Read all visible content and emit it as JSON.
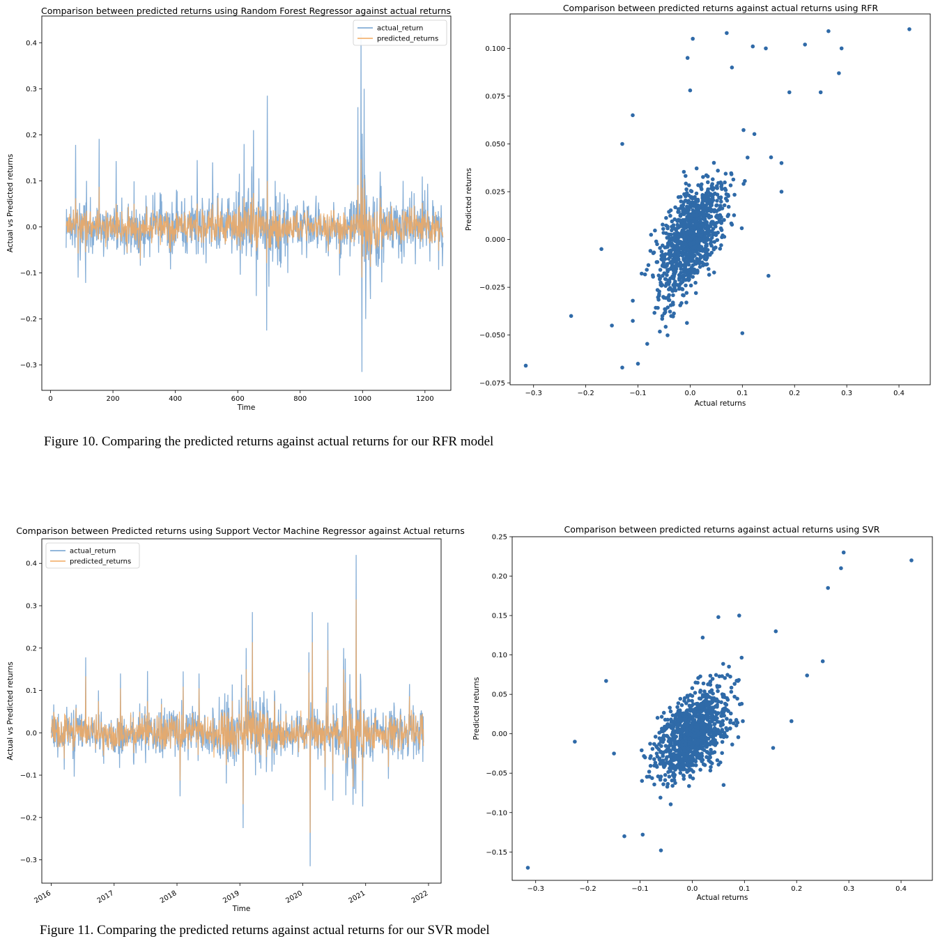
{
  "captions": {
    "fig10": "Figure 10. Comparing the predicted returns against actual returns for our RFR model",
    "fig11": "Figure 11. Comparing the predicted returns against actual returns for our SVR model"
  },
  "colors": {
    "actual": "#6e9fcf",
    "predicted": "#f2a95f",
    "scatter": "#2f6aa8"
  },
  "chart_data": [
    {
      "id": "rfr_line",
      "type": "line",
      "title": "Comparison between predicted returns using Random Forest Regressor against actual returns",
      "xlabel": "Time",
      "ylabel": "Actual vs Predicted returns",
      "xlim": [
        -28,
        1283
      ],
      "ylim": [
        -0.355,
        0.458
      ],
      "xticks": [
        0,
        200,
        400,
        600,
        800,
        1000,
        1200
      ],
      "xtick_labels": [
        "0",
        "200",
        "400",
        "600",
        "800",
        "1000",
        "1200"
      ],
      "yticks": [
        -0.3,
        -0.2,
        -0.1,
        0.0,
        0.1,
        0.2,
        0.3,
        0.4
      ],
      "ytick_labels": [
        "−0.3",
        "−0.2",
        "−0.1",
        "0.0",
        "0.1",
        "0.2",
        "0.3",
        "0.4"
      ],
      "legend": [
        "actual_return",
        "predicted_returns"
      ],
      "legend_loc": "upper right",
      "x_range": [
        50,
        1258
      ],
      "highlights": [
        {
          "x": 80,
          "y": 0.178
        },
        {
          "x": 115,
          "y": 0.1
        },
        {
          "x": 210,
          "y": 0.143
        },
        {
          "x": 470,
          "y": 0.145
        },
        {
          "x": 520,
          "y": 0.14
        },
        {
          "x": 620,
          "y": 0.18
        },
        {
          "x": 650,
          "y": 0.21
        },
        {
          "x": 660,
          "y": -0.15
        },
        {
          "x": 695,
          "y": 0.285
        },
        {
          "x": 693,
          "y": -0.225
        },
        {
          "x": 700,
          "y": -0.13
        },
        {
          "x": 720,
          "y": 0.1
        },
        {
          "x": 760,
          "y": -0.1
        },
        {
          "x": 985,
          "y": 0.26
        },
        {
          "x": 995,
          "y": 0.42
        },
        {
          "x": 998,
          "y": -0.315
        },
        {
          "x": 1005,
          "y": 0.3
        },
        {
          "x": 1010,
          "y": -0.2
        },
        {
          "x": 1130,
          "y": 0.1
        },
        {
          "x": 1200,
          "y": 0.08
        }
      ]
    },
    {
      "id": "rfr_scatter",
      "type": "scatter",
      "title": "Comparison between predicted returns against actual returns using RFR",
      "xlabel": "Actual returns",
      "ylabel": "Predicted returns",
      "xlim": [
        -0.345,
        0.46
      ],
      "ylim": [
        -0.076,
        0.118
      ],
      "xticks": [
        -0.3,
        -0.2,
        -0.1,
        0.0,
        0.1,
        0.2,
        0.3,
        0.4
      ],
      "xtick_labels": [
        "−0.3",
        "−0.2",
        "−0.1",
        "0.0",
        "0.1",
        "0.2",
        "0.3",
        "0.4"
      ],
      "yticks": [
        -0.075,
        -0.05,
        -0.025,
        0.0,
        0.025,
        0.05,
        0.075,
        0.1
      ],
      "ytick_labels": [
        "−0.075",
        "−0.050",
        "−0.025",
        "0.000",
        "0.025",
        "0.050",
        "0.075",
        "0.100"
      ],
      "cloud": {
        "n": 1000,
        "sx": 0.033,
        "sy": 0.016,
        "rho": 0.62,
        "cx": 0.0,
        "cy": 0.0
      },
      "outliers": [
        [
          -0.315,
          -0.066
        ],
        [
          -0.228,
          -0.04
        ],
        [
          -0.17,
          -0.005
        ],
        [
          -0.15,
          -0.045
        ],
        [
          -0.13,
          -0.067
        ],
        [
          -0.13,
          0.05
        ],
        [
          -0.11,
          0.065
        ],
        [
          -0.1,
          -0.065
        ],
        [
          0.42,
          0.11
        ],
        [
          0.29,
          0.1
        ],
        [
          0.285,
          0.087
        ],
        [
          0.265,
          0.109
        ],
        [
          0.25,
          0.077
        ],
        [
          0.22,
          0.102
        ],
        [
          0.19,
          0.077
        ],
        [
          0.175,
          0.04
        ],
        [
          0.175,
          0.025
        ],
        [
          0.155,
          0.043
        ],
        [
          0.15,
          -0.019
        ],
        [
          0.145,
          0.1
        ],
        [
          0.12,
          0.101
        ],
        [
          0.1,
          -0.049
        ],
        [
          0.07,
          0.108
        ],
        [
          0.005,
          0.105
        ],
        [
          -0.005,
          0.095
        ],
        [
          0.0,
          0.078
        ],
        [
          0.08,
          0.09
        ]
      ]
    },
    {
      "id": "svr_line",
      "type": "line",
      "title": "Comparison between Predicted returns using Support Vector Machine Regressor against Actual returns",
      "xlabel": "Time",
      "ylabel": "Actual vs Predicted returns",
      "xlim": [
        2015.85,
        2022.2
      ],
      "ylim": [
        -0.355,
        0.458
      ],
      "xticks": [
        2016,
        2017,
        2018,
        2019,
        2020,
        2021,
        2022
      ],
      "xtick_labels": [
        "2016",
        "2017",
        "2018",
        "2019",
        "2020",
        "2021",
        "2022"
      ],
      "yticks": [
        -0.3,
        -0.2,
        -0.1,
        0.0,
        0.1,
        0.2,
        0.3,
        0.4
      ],
      "ytick_labels": [
        "−0.3",
        "−0.2",
        "−0.1",
        "0.0",
        "0.1",
        "0.2",
        "0.3",
        "0.4"
      ],
      "legend": [
        "actual_return",
        "predicted_returns"
      ],
      "legend_loc": "upper left",
      "x_range": [
        2016.0,
        2021.92
      ],
      "highlights": [
        {
          "x": 2016.55,
          "y": 0.178
        },
        {
          "x": 2016.75,
          "y": 0.1
        },
        {
          "x": 2017.1,
          "y": 0.14
        },
        {
          "x": 2018.1,
          "y": 0.145
        },
        {
          "x": 2018.05,
          "y": -0.15
        },
        {
          "x": 2018.35,
          "y": 0.14
        },
        {
          "x": 2019.1,
          "y": 0.2
        },
        {
          "x": 2019.05,
          "y": -0.225
        },
        {
          "x": 2019.2,
          "y": 0.285
        },
        {
          "x": 2019.55,
          "y": 0.1
        },
        {
          "x": 2020.1,
          "y": 0.19
        },
        {
          "x": 2020.15,
          "y": 0.285
        },
        {
          "x": 2020.12,
          "y": -0.315
        },
        {
          "x": 2020.4,
          "y": 0.26
        },
        {
          "x": 2020.65,
          "y": 0.2
        },
        {
          "x": 2020.85,
          "y": 0.42
        },
        {
          "x": 2020.8,
          "y": -0.17
        },
        {
          "x": 2021.7,
          "y": 0.115
        }
      ]
    },
    {
      "id": "svr_scatter",
      "type": "scatter",
      "title": "Comparison between predicted returns against actual returns using SVR",
      "xlabel": "Actual returns",
      "ylabel": "Predicted returns",
      "xlim": [
        -0.345,
        0.46
      ],
      "ylim": [
        -0.186,
        0.25
      ],
      "xticks": [
        -0.3,
        -0.2,
        -0.1,
        0.0,
        0.1,
        0.2,
        0.3,
        0.4
      ],
      "xtick_labels": [
        "−0.3",
        "−0.2",
        "−0.1",
        "0.0",
        "0.1",
        "0.2",
        "0.3",
        "0.4"
      ],
      "yticks": [
        -0.15,
        -0.1,
        -0.05,
        0.0,
        0.05,
        0.1,
        0.15,
        0.2,
        0.25
      ],
      "ytick_labels": [
        "−0.15",
        "−0.10",
        "−0.05",
        "0.00",
        "0.05",
        "0.10",
        "0.15",
        "0.20",
        "0.25"
      ],
      "cloud": {
        "n": 1000,
        "sx": 0.035,
        "sy": 0.028,
        "rho": 0.5,
        "cx": 0.0,
        "cy": 0.0
      },
      "outliers": [
        [
          -0.315,
          -0.17
        ],
        [
          -0.225,
          -0.01
        ],
        [
          -0.165,
          0.067
        ],
        [
          -0.15,
          -0.025
        ],
        [
          -0.13,
          -0.13
        ],
        [
          -0.095,
          -0.128
        ],
        [
          -0.06,
          -0.148
        ],
        [
          0.42,
          0.22
        ],
        [
          0.29,
          0.23
        ],
        [
          0.285,
          0.21
        ],
        [
          0.26,
          0.185
        ],
        [
          0.25,
          0.092
        ],
        [
          0.22,
          0.074
        ],
        [
          0.19,
          0.016
        ],
        [
          0.16,
          0.13
        ],
        [
          0.155,
          -0.018
        ],
        [
          0.09,
          0.15
        ],
        [
          0.05,
          0.148
        ],
        [
          0.02,
          0.122
        ],
        [
          0.06,
          -0.065
        ]
      ]
    }
  ]
}
